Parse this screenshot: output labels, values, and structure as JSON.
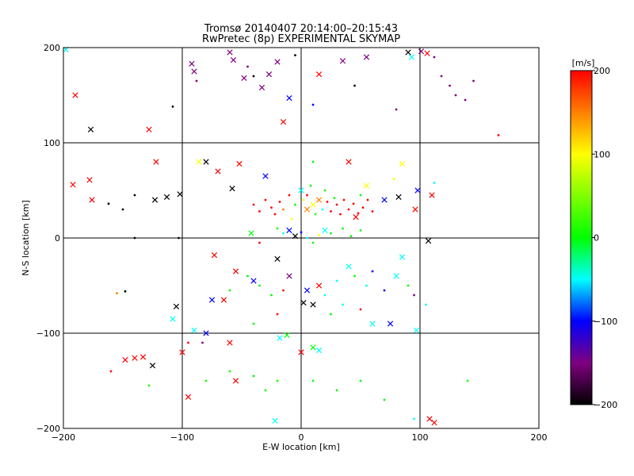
{
  "chart_data": {
    "type": "scatter",
    "title": "Tromsø 20140407 20:14:00–20:15:43",
    "subtitle": "RwPretec (8p) EXPERIMENTAL SKYMAP",
    "xlabel": "E-W location [km]",
    "ylabel": "N-S location [km]",
    "xlim": [
      -200,
      200
    ],
    "ylim": [
      -200,
      200
    ],
    "xticks": [
      -200,
      -100,
      0,
      100,
      200
    ],
    "yticks": [
      -200,
      -100,
      0,
      100,
      200
    ],
    "xtick_labels": [
      "−200",
      "−100",
      "0",
      "100",
      "200"
    ],
    "ytick_labels": [
      "−200",
      "−100",
      "0",
      "100",
      "200"
    ],
    "grid": true,
    "grid_lines_x": [
      -100,
      0,
      100
    ],
    "grid_lines_y": [
      -100,
      0,
      100
    ],
    "colorbar": {
      "label": "[m/s]",
      "range": [
        -200,
        200
      ],
      "ticks": [
        200,
        100,
        0,
        -100,
        -200
      ],
      "tick_labels": [
        "200",
        "100",
        "0",
        "−100",
        "−200"
      ],
      "stops": [
        {
          "value": -200,
          "color": "#000000"
        },
        {
          "value": -150,
          "color": "#7f0080"
        },
        {
          "value": -100,
          "color": "#0000ff"
        },
        {
          "value": -50,
          "color": "#00ffff"
        },
        {
          "value": 0,
          "color": "#00ff00"
        },
        {
          "value": 100,
          "color": "#ffff00"
        },
        {
          "value": 150,
          "color": "#ff8000"
        },
        {
          "value": 200,
          "color": "#ff0000"
        }
      ]
    },
    "marker_types": [
      "dot",
      "x"
    ],
    "series": [
      {
        "x": -198,
        "y": 198,
        "v": -50,
        "m": "x"
      },
      {
        "x": -190,
        "y": 150,
        "v": 200,
        "m": "x"
      },
      {
        "x": -177,
        "y": 114,
        "v": -200,
        "m": "x"
      },
      {
        "x": -128,
        "y": 114,
        "v": 200,
        "m": "x"
      },
      {
        "x": -108,
        "y": 138,
        "v": -200,
        "m": "dot"
      },
      {
        "x": -92,
        "y": 183,
        "v": -150,
        "m": "x"
      },
      {
        "x": -90,
        "y": 175,
        "v": -150,
        "m": "x"
      },
      {
        "x": -88,
        "y": 165,
        "v": -150,
        "m": "dot"
      },
      {
        "x": -60,
        "y": 195,
        "v": -150,
        "m": "x"
      },
      {
        "x": -57,
        "y": 187,
        "v": -150,
        "m": "x"
      },
      {
        "x": -48,
        "y": 168,
        "v": -150,
        "m": "x"
      },
      {
        "x": -45,
        "y": 180,
        "v": -150,
        "m": "dot"
      },
      {
        "x": -40,
        "y": 170,
        "v": -200,
        "m": "dot"
      },
      {
        "x": -33,
        "y": 158,
        "v": -150,
        "m": "x"
      },
      {
        "x": -27,
        "y": 172,
        "v": -150,
        "m": "x"
      },
      {
        "x": -20,
        "y": 185,
        "v": -150,
        "m": "x"
      },
      {
        "x": -10,
        "y": 147,
        "v": -100,
        "m": "x"
      },
      {
        "x": -5,
        "y": 192,
        "v": -200,
        "m": "dot"
      },
      {
        "x": 10,
        "y": 140,
        "v": -100,
        "m": "dot"
      },
      {
        "x": 15,
        "y": 172,
        "v": 200,
        "m": "x"
      },
      {
        "x": 35,
        "y": 186,
        "v": -150,
        "m": "x"
      },
      {
        "x": 45,
        "y": 160,
        "v": -200,
        "m": "dot"
      },
      {
        "x": 55,
        "y": 190,
        "v": -150,
        "m": "x"
      },
      {
        "x": 80,
        "y": 135,
        "v": -150,
        "m": "dot"
      },
      {
        "x": 90,
        "y": 195,
        "v": -200,
        "m": "x"
      },
      {
        "x": 93,
        "y": 190,
        "v": -50,
        "m": "x"
      },
      {
        "x": 101,
        "y": 196,
        "v": -150,
        "m": "x"
      },
      {
        "x": 106,
        "y": 194,
        "v": 200,
        "m": "x"
      },
      {
        "x": 112,
        "y": 190,
        "v": -150,
        "m": "dot"
      },
      {
        "x": 118,
        "y": 170,
        "v": -150,
        "m": "dot"
      },
      {
        "x": 125,
        "y": 160,
        "v": -150,
        "m": "dot"
      },
      {
        "x": 130,
        "y": 150,
        "v": -150,
        "m": "dot"
      },
      {
        "x": 138,
        "y": 145,
        "v": -150,
        "m": "dot"
      },
      {
        "x": 145,
        "y": 165,
        "v": -150,
        "m": "dot"
      },
      {
        "x": 166,
        "y": 108,
        "v": 200,
        "m": "dot"
      },
      {
        "x": -15,
        "y": 122,
        "v": 200,
        "m": "x"
      },
      {
        "x": -192,
        "y": 56,
        "v": 200,
        "m": "x"
      },
      {
        "x": -178,
        "y": 61,
        "v": 200,
        "m": "x"
      },
      {
        "x": -176,
        "y": 40,
        "v": 200,
        "m": "x"
      },
      {
        "x": -162,
        "y": 36,
        "v": -200,
        "m": "dot"
      },
      {
        "x": -150,
        "y": 30,
        "v": -200,
        "m": "dot"
      },
      {
        "x": -140,
        "y": 45,
        "v": -200,
        "m": "dot"
      },
      {
        "x": -122,
        "y": 80,
        "v": 200,
        "m": "x"
      },
      {
        "x": -123,
        "y": 40,
        "v": -200,
        "m": "x"
      },
      {
        "x": -113,
        "y": 43,
        "v": -200,
        "m": "x"
      },
      {
        "x": -102,
        "y": 46,
        "v": -200,
        "m": "x"
      },
      {
        "x": -86,
        "y": 80,
        "v": 100,
        "m": "x"
      },
      {
        "x": -80,
        "y": 80,
        "v": -200,
        "m": "x"
      },
      {
        "x": -70,
        "y": 70,
        "v": 200,
        "m": "x"
      },
      {
        "x": -30,
        "y": 65,
        "v": -100,
        "m": "x"
      },
      {
        "x": -52,
        "y": 78,
        "v": 200,
        "m": "x"
      },
      {
        "x": -58,
        "y": 52,
        "v": -200,
        "m": "x"
      },
      {
        "x": -40,
        "y": 35,
        "v": 200,
        "m": "dot"
      },
      {
        "x": -35,
        "y": 28,
        "v": 200,
        "m": "dot"
      },
      {
        "x": -30,
        "y": 40,
        "v": 200,
        "m": "dot"
      },
      {
        "x": -25,
        "y": 32,
        "v": 200,
        "m": "dot"
      },
      {
        "x": -22,
        "y": 25,
        "v": 200,
        "m": "dot"
      },
      {
        "x": -18,
        "y": 38,
        "v": 200,
        "m": "dot"
      },
      {
        "x": -15,
        "y": 30,
        "v": 150,
        "m": "dot"
      },
      {
        "x": -10,
        "y": 45,
        "v": 200,
        "m": "dot"
      },
      {
        "x": -8,
        "y": 20,
        "v": 100,
        "m": "dot"
      },
      {
        "x": -5,
        "y": 35,
        "v": 0,
        "m": "dot"
      },
      {
        "x": 0,
        "y": 50,
        "v": -50,
        "m": "x"
      },
      {
        "x": 2,
        "y": 40,
        "v": 100,
        "m": "dot"
      },
      {
        "x": 5,
        "y": 30,
        "v": 150,
        "m": "x"
      },
      {
        "x": 5,
        "y": 45,
        "v": 200,
        "m": "dot"
      },
      {
        "x": 8,
        "y": 55,
        "v": 0,
        "m": "dot"
      },
      {
        "x": 10,
        "y": 35,
        "v": 100,
        "m": "x"
      },
      {
        "x": 12,
        "y": 25,
        "v": 0,
        "m": "dot"
      },
      {
        "x": 15,
        "y": 40,
        "v": 150,
        "m": "x"
      },
      {
        "x": 18,
        "y": 30,
        "v": -50,
        "m": "dot"
      },
      {
        "x": 20,
        "y": 50,
        "v": 0,
        "m": "dot"
      },
      {
        "x": 22,
        "y": 38,
        "v": 200,
        "m": "dot"
      },
      {
        "x": 25,
        "y": 28,
        "v": 200,
        "m": "dot"
      },
      {
        "x": 28,
        "y": 42,
        "v": 0,
        "m": "dot"
      },
      {
        "x": 30,
        "y": 35,
        "v": 200,
        "m": "dot"
      },
      {
        "x": 33,
        "y": 25,
        "v": 200,
        "m": "dot"
      },
      {
        "x": 36,
        "y": 40,
        "v": 200,
        "m": "dot"
      },
      {
        "x": 40,
        "y": 30,
        "v": 200,
        "m": "dot"
      },
      {
        "x": 44,
        "y": 36,
        "v": 200,
        "m": "dot"
      },
      {
        "x": 48,
        "y": 26,
        "v": 200,
        "m": "dot"
      },
      {
        "x": 52,
        "y": 32,
        "v": 200,
        "m": "dot"
      },
      {
        "x": 56,
        "y": 40,
        "v": 200,
        "m": "dot"
      },
      {
        "x": 60,
        "y": 28,
        "v": 200,
        "m": "dot"
      },
      {
        "x": 46,
        "y": 22,
        "v": 200,
        "m": "x"
      },
      {
        "x": 50,
        "y": 45,
        "v": 0,
        "m": "dot"
      },
      {
        "x": 55,
        "y": 55,
        "v": 100,
        "m": "x"
      },
      {
        "x": 70,
        "y": 40,
        "v": -100,
        "m": "x"
      },
      {
        "x": 78,
        "y": 62,
        "v": 100,
        "m": "dot"
      },
      {
        "x": 82,
        "y": 43,
        "v": -200,
        "m": "x"
      },
      {
        "x": 85,
        "y": 78,
        "v": 100,
        "m": "x"
      },
      {
        "x": 96,
        "y": 30,
        "v": 200,
        "m": "x"
      },
      {
        "x": 98,
        "y": 50,
        "v": -100,
        "m": "x"
      },
      {
        "x": 110,
        "y": 45,
        "v": 200,
        "m": "x"
      },
      {
        "x": 112,
        "y": 58,
        "v": -50,
        "m": "dot"
      },
      {
        "x": 40,
        "y": 80,
        "v": 200,
        "m": "x"
      },
      {
        "x": 10,
        "y": 80,
        "v": 0,
        "m": "dot"
      },
      {
        "x": -20,
        "y": 10,
        "v": 0,
        "m": "dot"
      },
      {
        "x": -15,
        "y": 5,
        "v": -50,
        "m": "dot"
      },
      {
        "x": -10,
        "y": 8,
        "v": -100,
        "m": "x"
      },
      {
        "x": -5,
        "y": 2,
        "v": -200,
        "m": "x"
      },
      {
        "x": 0,
        "y": 6,
        "v": -100,
        "m": "dot"
      },
      {
        "x": 5,
        "y": 0,
        "v": -50,
        "m": "dot"
      },
      {
        "x": 10,
        "y": -5,
        "v": 0,
        "m": "dot"
      },
      {
        "x": 15,
        "y": 3,
        "v": 100,
        "m": "dot"
      },
      {
        "x": 20,
        "y": 8,
        "v": -50,
        "m": "x"
      },
      {
        "x": -42,
        "y": 5,
        "v": 0,
        "m": "x"
      },
      {
        "x": -35,
        "y": -5,
        "v": 200,
        "m": "dot"
      },
      {
        "x": 25,
        "y": 5,
        "v": 0,
        "m": "dot"
      },
      {
        "x": 35,
        "y": 10,
        "v": 0,
        "m": "dot"
      },
      {
        "x": 42,
        "y": 2,
        "v": 0,
        "m": "dot"
      },
      {
        "x": 50,
        "y": 8,
        "v": 0,
        "m": "dot"
      },
      {
        "x": -103,
        "y": 0,
        "v": -200,
        "m": "dot"
      },
      {
        "x": -140,
        "y": 0,
        "v": -200,
        "m": "dot"
      },
      {
        "x": 107,
        "y": -3,
        "v": -200,
        "m": "x"
      },
      {
        "x": -73,
        "y": -18,
        "v": 200,
        "m": "x"
      },
      {
        "x": -55,
        "y": -35,
        "v": 200,
        "m": "x"
      },
      {
        "x": -45,
        "y": -40,
        "v": 0,
        "m": "dot"
      },
      {
        "x": -40,
        "y": -45,
        "v": -100,
        "m": "x"
      },
      {
        "x": -35,
        "y": -50,
        "v": 0,
        "m": "dot"
      },
      {
        "x": -20,
        "y": -22,
        "v": -200,
        "m": "x"
      },
      {
        "x": -10,
        "y": -40,
        "v": -150,
        "m": "x"
      },
      {
        "x": -15,
        "y": -55,
        "v": 200,
        "m": "dot"
      },
      {
        "x": -25,
        "y": -60,
        "v": 0,
        "m": "dot"
      },
      {
        "x": -60,
        "y": -55,
        "v": 0,
        "m": "dot"
      },
      {
        "x": -65,
        "y": -65,
        "v": 200,
        "m": "x"
      },
      {
        "x": -75,
        "y": -65,
        "v": -100,
        "m": "x"
      },
      {
        "x": -105,
        "y": -72,
        "v": -200,
        "m": "x"
      },
      {
        "x": -108,
        "y": -85,
        "v": -50,
        "m": "x"
      },
      {
        "x": -155,
        "y": -58,
        "v": 150,
        "m": "dot"
      },
      {
        "x": -148,
        "y": -56,
        "v": -200,
        "m": "dot"
      },
      {
        "x": 5,
        "y": -55,
        "v": -100,
        "m": "x"
      },
      {
        "x": 15,
        "y": -50,
        "v": 200,
        "m": "x"
      },
      {
        "x": 20,
        "y": -60,
        "v": -50,
        "m": "dot"
      },
      {
        "x": 30,
        "y": -45,
        "v": -50,
        "m": "dot"
      },
      {
        "x": 40,
        "y": -30,
        "v": -50,
        "m": "x"
      },
      {
        "x": 45,
        "y": -40,
        "v": 0,
        "m": "dot"
      },
      {
        "x": 55,
        "y": -50,
        "v": -50,
        "m": "dot"
      },
      {
        "x": 60,
        "y": -35,
        "v": -100,
        "m": "dot"
      },
      {
        "x": 70,
        "y": -55,
        "v": -100,
        "m": "dot"
      },
      {
        "x": 80,
        "y": -40,
        "v": -50,
        "m": "x"
      },
      {
        "x": 85,
        "y": -20,
        "v": -50,
        "m": "x"
      },
      {
        "x": 90,
        "y": -50,
        "v": 0,
        "m": "dot"
      },
      {
        "x": 95,
        "y": -60,
        "v": -150,
        "m": "dot"
      },
      {
        "x": 25,
        "y": -80,
        "v": 0,
        "m": "dot"
      },
      {
        "x": 35,
        "y": -70,
        "v": -50,
        "m": "dot"
      },
      {
        "x": 50,
        "y": -75,
        "v": 200,
        "m": "dot"
      },
      {
        "x": 60,
        "y": -90,
        "v": -50,
        "m": "x"
      },
      {
        "x": 75,
        "y": -90,
        "v": -100,
        "m": "x"
      },
      {
        "x": 97,
        "y": -97,
        "v": -50,
        "m": "x"
      },
      {
        "x": 105,
        "y": -70,
        "v": -50,
        "m": "dot"
      },
      {
        "x": 2,
        "y": -68,
        "v": -200,
        "m": "x"
      },
      {
        "x": 10,
        "y": -70,
        "v": -200,
        "m": "x"
      },
      {
        "x": -20,
        "y": -80,
        "v": 200,
        "m": "dot"
      },
      {
        "x": -40,
        "y": -90,
        "v": 0,
        "m": "dot"
      },
      {
        "x": -60,
        "y": -110,
        "v": 200,
        "m": "x"
      },
      {
        "x": -80,
        "y": -100,
        "v": -100,
        "m": "x"
      },
      {
        "x": -90,
        "y": -97,
        "v": -50,
        "m": "x"
      },
      {
        "x": -83,
        "y": -110,
        "v": -150,
        "m": "dot"
      },
      {
        "x": -95,
        "y": -110,
        "v": 200,
        "m": "dot"
      },
      {
        "x": -100,
        "y": -120,
        "v": 200,
        "m": "x"
      },
      {
        "x": -18,
        "y": -105,
        "v": -50,
        "m": "x"
      },
      {
        "x": -12,
        "y": -102,
        "v": 0,
        "m": "x"
      },
      {
        "x": 0,
        "y": -120,
        "v": 200,
        "m": "x"
      },
      {
        "x": 10,
        "y": -115,
        "v": 0,
        "m": "x"
      },
      {
        "x": 15,
        "y": -118,
        "v": -50,
        "m": "x"
      },
      {
        "x": -125,
        "y": -134,
        "v": -200,
        "m": "x"
      },
      {
        "x": -133,
        "y": -125,
        "v": 200,
        "m": "x"
      },
      {
        "x": -140,
        "y": -126,
        "v": 200,
        "m": "x"
      },
      {
        "x": -148,
        "y": -128,
        "v": 200,
        "m": "x"
      },
      {
        "x": -160,
        "y": -140,
        "v": 200,
        "m": "dot"
      },
      {
        "x": -128,
        "y": -155,
        "v": 0,
        "m": "dot"
      },
      {
        "x": -80,
        "y": -150,
        "v": 0,
        "m": "dot"
      },
      {
        "x": -60,
        "y": -140,
        "v": 0,
        "m": "dot"
      },
      {
        "x": -55,
        "y": -150,
        "v": 200,
        "m": "x"
      },
      {
        "x": -40,
        "y": -145,
        "v": 0,
        "m": "dot"
      },
      {
        "x": -30,
        "y": -160,
        "v": 0,
        "m": "dot"
      },
      {
        "x": -20,
        "y": -150,
        "v": 0,
        "m": "dot"
      },
      {
        "x": -95,
        "y": -167,
        "v": 200,
        "m": "x"
      },
      {
        "x": -22,
        "y": -192,
        "v": -50,
        "m": "x"
      },
      {
        "x": 10,
        "y": -150,
        "v": 0,
        "m": "dot"
      },
      {
        "x": 30,
        "y": -160,
        "v": 0,
        "m": "dot"
      },
      {
        "x": 50,
        "y": -150,
        "v": 0,
        "m": "dot"
      },
      {
        "x": 70,
        "y": -170,
        "v": 0,
        "m": "dot"
      },
      {
        "x": 95,
        "y": -190,
        "v": -50,
        "m": "dot"
      },
      {
        "x": 108,
        "y": -190,
        "v": 200,
        "m": "x"
      },
      {
        "x": 112,
        "y": -194,
        "v": 200,
        "m": "x"
      },
      {
        "x": 140,
        "y": -150,
        "v": 0,
        "m": "dot"
      }
    ]
  }
}
